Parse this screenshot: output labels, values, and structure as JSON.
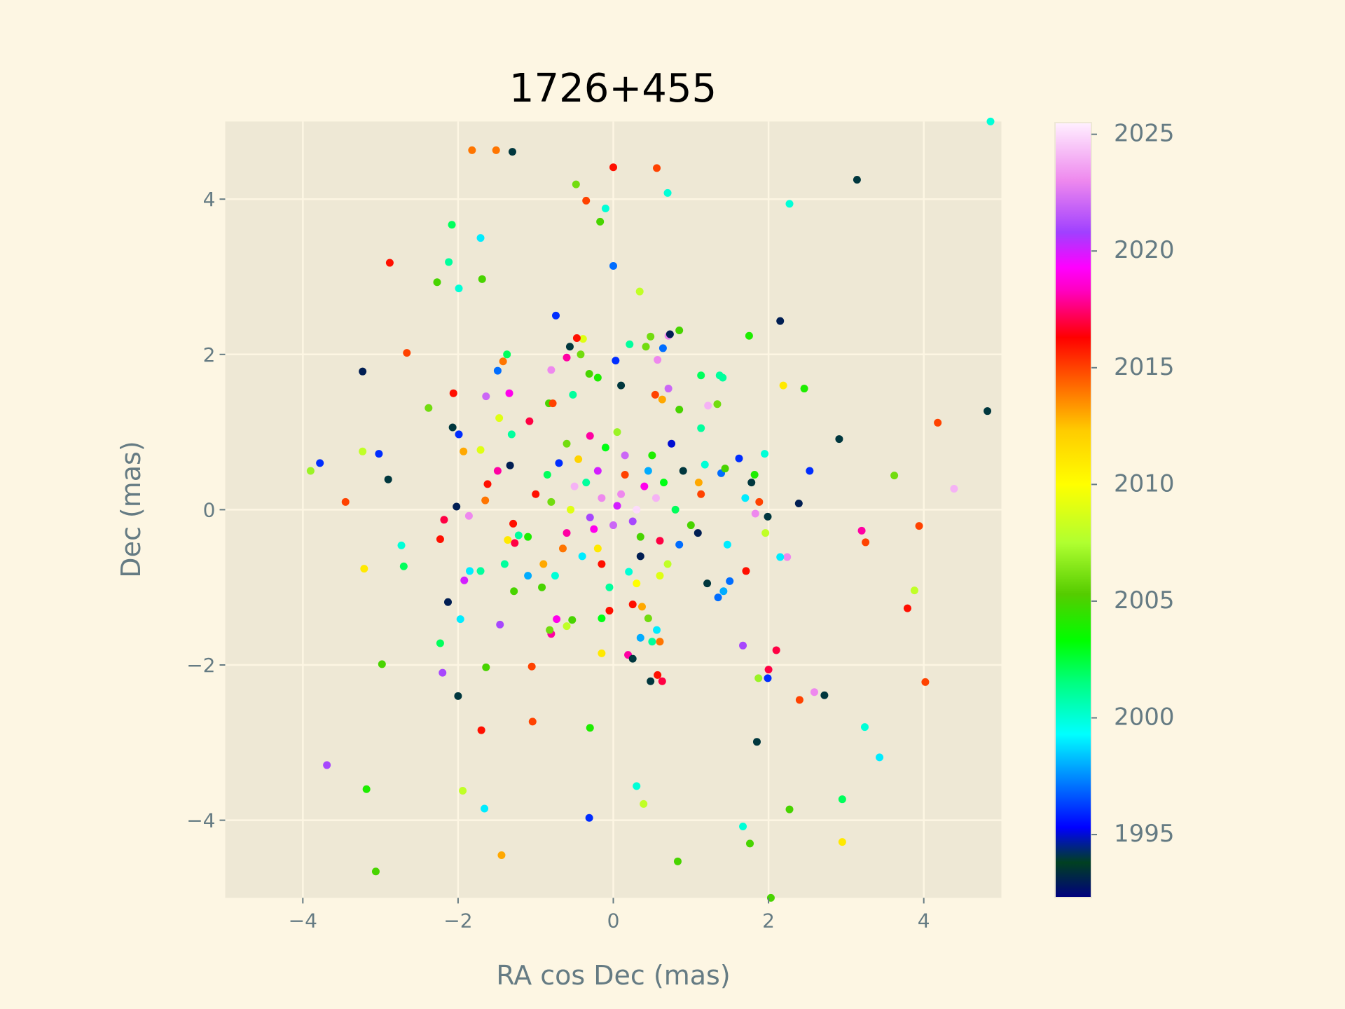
{
  "chart_data": {
    "type": "scatter",
    "title": "1726+455",
    "xlabel": "RA cos Dec (mas)",
    "ylabel": "Dec (mas)",
    "xlim": [
      -5,
      5
    ],
    "ylim": [
      -5,
      5
    ],
    "grid": true,
    "xticks": [
      -4,
      -2,
      0,
      2,
      4
    ],
    "yticks": [
      -4,
      -2,
      0,
      2,
      4
    ],
    "xtick_labels": [
      "−4",
      "−2",
      "0",
      "2",
      "4"
    ],
    "ytick_labels": [
      "−4",
      "−2",
      "0",
      "2",
      "4"
    ],
    "colorbar": {
      "label_ticks": [
        1995,
        2000,
        2005,
        2010,
        2015,
        2020,
        2025
      ],
      "tick_labels": [
        "1995",
        "2000",
        "2005",
        "2010",
        "2015",
        "2020",
        "2025"
      ],
      "range": [
        1992.3,
        2025.5
      ],
      "colormap_stops": [
        [
          1992.3,
          "#000080"
        ],
        [
          1993.8,
          "#004020"
        ],
        [
          1995.3,
          "#0000ff"
        ],
        [
          1997.3,
          "#0080ff"
        ],
        [
          1999.3,
          "#00ffff"
        ],
        [
          2001.5,
          "#00ff80"
        ],
        [
          2003.3,
          "#00ff00"
        ],
        [
          2005.3,
          "#55cc00"
        ],
        [
          2007.5,
          "#b0ff30"
        ],
        [
          2010.0,
          "#ffff00"
        ],
        [
          2012.3,
          "#ffcc00"
        ],
        [
          2014.3,
          "#ff6600"
        ],
        [
          2016.3,
          "#ff0000"
        ],
        [
          2018.3,
          "#ff00c0"
        ],
        [
          2019.3,
          "#ff00ff"
        ],
        [
          2020.8,
          "#a040ff"
        ],
        [
          2023.0,
          "#ee88ee"
        ],
        [
          2025.5,
          "#fff0ff"
        ]
      ]
    },
    "points": [
      [
        -1.82,
        4.63,
        2014
      ],
      [
        -1.51,
        4.63,
        2014
      ],
      [
        -1.3,
        4.61,
        1994
      ],
      [
        0,
        4.41,
        2016
      ],
      [
        0.56,
        4.4,
        2015
      ],
      [
        -0.48,
        4.19,
        2006
      ],
      [
        -0.35,
        3.98,
        2015
      ],
      [
        0.7,
        4.08,
        2000
      ],
      [
        -0.1,
        3.88,
        2000
      ],
      [
        -0.17,
        3.71,
        2005
      ],
      [
        3.14,
        4.25,
        1994
      ],
      [
        2.27,
        3.94,
        2000
      ],
      [
        4.86,
        5.0,
        2000
      ],
      [
        -2.08,
        3.67,
        2002
      ],
      [
        -1.71,
        3.5,
        1999
      ],
      [
        -2.88,
        3.18,
        2016
      ],
      [
        -2.12,
        3.19,
        2001
      ],
      [
        -2.27,
        2.93,
        2005
      ],
      [
        -1.69,
        2.97,
        2005
      ],
      [
        -1.99,
        2.85,
        2000
      ],
      [
        0,
        3.14,
        1997
      ],
      [
        0.34,
        2.81,
        2008
      ],
      [
        -0.74,
        2.5,
        1996
      ],
      [
        2.15,
        2.43,
        1993
      ],
      [
        1.75,
        2.24,
        2004
      ],
      [
        0.85,
        2.31,
        2005
      ],
      [
        -2.66,
        2.02,
        2015
      ],
      [
        -3.23,
        1.78,
        1993
      ],
      [
        -2.06,
        1.5,
        2016
      ],
      [
        -2.38,
        1.31,
        2006
      ],
      [
        2.19,
        1.6,
        2011
      ],
      [
        2.46,
        1.56,
        2004
      ],
      [
        4.18,
        1.12,
        2015
      ],
      [
        4.82,
        1.27,
        1994
      ],
      [
        2.91,
        0.91,
        1994
      ],
      [
        -2.07,
        1.06,
        1994
      ],
      [
        -3.23,
        0.75,
        2008
      ],
      [
        -3.02,
        0.72,
        1996
      ],
      [
        -3.78,
        0.6,
        1996
      ],
      [
        -3.9,
        0.5,
        2007
      ],
      [
        -2.9,
        0.39,
        1994
      ],
      [
        2.53,
        0.5,
        1996
      ],
      [
        3.62,
        0.44,
        2006
      ],
      [
        4.39,
        0.27,
        2024
      ],
      [
        -3.45,
        0.1,
        2015
      ],
      [
        -2.02,
        0.04,
        1993
      ],
      [
        -1.86,
        -0.08,
        2023
      ],
      [
        -2.18,
        -0.13,
        2017
      ],
      [
        2.39,
        0.08,
        1993
      ],
      [
        1.99,
        -0.09,
        1994
      ],
      [
        3.94,
        -0.21,
        2015
      ],
      [
        3.2,
        -0.27,
        2018
      ],
      [
        3.25,
        -0.42,
        2015
      ],
      [
        -2.73,
        -0.46,
        2000
      ],
      [
        -2.23,
        -0.38,
        2016
      ],
      [
        -2.7,
        -0.73,
        2002
      ],
      [
        -3.21,
        -0.76,
        2011
      ],
      [
        2.24,
        -0.61,
        2023
      ],
      [
        2.15,
        -0.61,
        1999
      ],
      [
        3.88,
        -1.04,
        2008
      ],
      [
        3.79,
        -1.27,
        2016
      ],
      [
        -2.13,
        -1.19,
        1993
      ],
      [
        -1.97,
        -1.41,
        1999
      ],
      [
        -2.23,
        -1.72,
        2002
      ],
      [
        -1.46,
        -1.48,
        2021
      ],
      [
        -2.98,
        -1.99,
        2005
      ],
      [
        -2.2,
        -2.1,
        2021
      ],
      [
        -2.0,
        -2.4,
        1994
      ],
      [
        -1.64,
        -2.03,
        2005
      ],
      [
        -1.05,
        -2.02,
        2015
      ],
      [
        -1.7,
        -2.84,
        2016
      ],
      [
        -1.04,
        -2.73,
        2015
      ],
      [
        -0.3,
        -2.81,
        2004
      ],
      [
        1.67,
        -1.75,
        2021
      ],
      [
        2.1,
        -1.81,
        2017
      ],
      [
        2.0,
        -2.06,
        2017
      ],
      [
        1.99,
        -2.17,
        1996
      ],
      [
        1.87,
        -2.17,
        2007
      ],
      [
        2.59,
        -2.35,
        2023
      ],
      [
        2.4,
        -2.45,
        2015
      ],
      [
        2.72,
        -2.39,
        1994
      ],
      [
        4.02,
        -2.22,
        2015
      ],
      [
        3.24,
        -2.8,
        2000
      ],
      [
        1.85,
        -2.99,
        1994
      ],
      [
        3.43,
        -3.19,
        1999
      ],
      [
        -3.69,
        -3.29,
        2021
      ],
      [
        -3.18,
        -3.6,
        2004
      ],
      [
        -1.94,
        -3.62,
        2008
      ],
      [
        -1.66,
        -3.85,
        1999
      ],
      [
        0.3,
        -3.56,
        2000
      ],
      [
        0.39,
        -3.79,
        2008
      ],
      [
        -0.31,
        -3.97,
        1996
      ],
      [
        2.27,
        -3.86,
        2005
      ],
      [
        2.95,
        -3.73,
        2002
      ],
      [
        1.67,
        -4.08,
        2000
      ],
      [
        1.76,
        -4.3,
        2005
      ],
      [
        2.95,
        -4.28,
        2011
      ],
      [
        0.83,
        -4.53,
        2005
      ],
      [
        -1.44,
        -4.45,
        2013
      ],
      [
        -3.06,
        -4.66,
        2005
      ],
      [
        2.03,
        -5.0,
        2005
      ],
      [
        -1.42,
        1.91,
        2014
      ],
      [
        -1.49,
        1.79,
        1997
      ],
      [
        -1.37,
        2.0,
        2002
      ],
      [
        -0.56,
        2.1,
        1994
      ],
      [
        -0.39,
        2.2,
        2009
      ],
      [
        -0.47,
        2.21,
        2016
      ],
      [
        -0.6,
        1.96,
        2018
      ],
      [
        -0.42,
        2.0,
        2006
      ],
      [
        0.48,
        2.23,
        2006
      ],
      [
        0.42,
        2.1,
        2006
      ],
      [
        0.21,
        2.13,
        2001
      ],
      [
        0.71,
        2.24,
        2023
      ],
      [
        0.73,
        2.26,
        1993
      ],
      [
        0.64,
        2.08,
        1997
      ],
      [
        0.57,
        1.93,
        2023
      ],
      [
        0.03,
        1.92,
        1996
      ],
      [
        -0.8,
        1.8,
        2023
      ],
      [
        -0.31,
        1.75,
        2005
      ],
      [
        -0.2,
        1.7,
        2004
      ],
      [
        0.1,
        1.6,
        1994
      ],
      [
        1.13,
        1.73,
        2002
      ],
      [
        1.37,
        1.73,
        2001
      ],
      [
        1.41,
        1.7,
        2001
      ],
      [
        0.71,
        1.56,
        2022
      ],
      [
        -1.64,
        1.46,
        2022
      ],
      [
        -1.47,
        1.18,
        2009
      ],
      [
        -1.34,
        1.5,
        2019
      ],
      [
        -1.08,
        1.14,
        2017
      ],
      [
        -0.83,
        1.37,
        2005
      ],
      [
        -0.78,
        1.37,
        2015
      ],
      [
        1.22,
        1.34,
        2024
      ],
      [
        1.34,
        1.36,
        2006
      ],
      [
        1.13,
        1.05,
        2001
      ],
      [
        0.85,
        1.29,
        2005
      ],
      [
        0.63,
        1.42,
        2013
      ],
      [
        -0.52,
        1.48,
        2001
      ],
      [
        0.54,
        1.48,
        2015
      ],
      [
        -1.93,
        0.75,
        2013
      ],
      [
        -1.71,
        0.77,
        2009
      ],
      [
        -1.99,
        0.97,
        1996
      ],
      [
        -1.31,
        0.97,
        2001
      ],
      [
        -1.49,
        0.5,
        2018
      ],
      [
        -1.33,
        0.57,
        1993
      ],
      [
        -1.62,
        0.33,
        2016
      ],
      [
        -1.65,
        0.12,
        2014
      ],
      [
        -1.29,
        -0.18,
        2016
      ],
      [
        -1.36,
        -0.39,
        2011
      ],
      [
        -1.27,
        -0.43,
        2017
      ],
      [
        -1.22,
        -0.33,
        2001
      ],
      [
        -1.4,
        -0.7,
        2001
      ],
      [
        -1.71,
        -0.79,
        2001
      ],
      [
        -1.85,
        -0.79,
        1999
      ],
      [
        -1.92,
        -0.91,
        2020
      ],
      [
        -1.1,
        -0.85,
        1998
      ],
      [
        -1.28,
        -1.05,
        2005
      ],
      [
        -0.92,
        -1.0,
        2005
      ],
      [
        -0.73,
        -1.41,
        2019
      ],
      [
        -0.6,
        -1.5,
        2008
      ],
      [
        -0.53,
        -1.42,
        2005
      ],
      [
        -0.8,
        -1.6,
        2018
      ],
      [
        -0.82,
        -1.55,
        2006
      ],
      [
        -0.15,
        -1.4,
        2003
      ],
      [
        -0.05,
        -1.3,
        2016
      ],
      [
        0.25,
        -1.22,
        2016
      ],
      [
        0.37,
        -1.25,
        2013
      ],
      [
        0.45,
        -1.4,
        2006
      ],
      [
        0.35,
        -1.65,
        1998
      ],
      [
        0.56,
        -1.55,
        1999
      ],
      [
        0.6,
        -1.7,
        2014
      ],
      [
        0.19,
        -1.87,
        2018
      ],
      [
        0.25,
        -1.92,
        1994
      ],
      [
        0.5,
        -1.7,
        2001
      ],
      [
        -0.15,
        -1.85,
        2011
      ],
      [
        0.48,
        -2.21,
        1994
      ],
      [
        0.57,
        -2.13,
        2016
      ],
      [
        0.63,
        -2.21,
        2017
      ],
      [
        1.21,
        -0.95,
        1994
      ],
      [
        1.42,
        -1.05,
        1998
      ],
      [
        1.35,
        -1.13,
        1997
      ],
      [
        1.5,
        -0.92,
        1997
      ],
      [
        1.47,
        -0.45,
        1999
      ],
      [
        1.39,
        0.47,
        1997
      ],
      [
        1.44,
        0.53,
        2005
      ],
      [
        1.62,
        0.66,
        1996
      ],
      [
        1.82,
        0.45,
        2004
      ],
      [
        1.78,
        0.35,
        1994
      ],
      [
        1.95,
        0.72,
        2000
      ],
      [
        1.7,
        0.15,
        1999
      ],
      [
        1.88,
        0.1,
        2015
      ],
      [
        1.83,
        -0.05,
        2023
      ],
      [
        1.96,
        -0.3,
        2008
      ],
      [
        1.71,
        -0.79,
        2016
      ],
      [
        1.18,
        0.58,
        2000
      ],
      [
        1.13,
        0.2,
        2015
      ],
      [
        1.09,
        -0.3,
        1993
      ],
      [
        -0.5,
        0.3,
        2024
      ],
      [
        -0.2,
        0.5,
        2020
      ],
      [
        0.1,
        0.2,
        2023
      ],
      [
        0.3,
        0.0,
        2025
      ],
      [
        0.0,
        -0.2,
        2022
      ],
      [
        -0.3,
        -0.1,
        2021
      ],
      [
        0.4,
        0.3,
        2019
      ],
      [
        -0.6,
        -0.3,
        2018
      ],
      [
        0.6,
        -0.4,
        2017
      ],
      [
        -0.1,
        0.8,
        2003
      ],
      [
        0.2,
        -0.8,
        2000
      ],
      [
        -0.8,
        0.1,
        2006
      ],
      [
        0.8,
        0.0,
        2002
      ],
      [
        -0.4,
        -0.6,
        1999
      ],
      [
        0.5,
        0.7,
        2004
      ],
      [
        -0.7,
        0.6,
        1996
      ],
      [
        0.7,
        -0.7,
        2008
      ],
      [
        -0.9,
        -0.7,
        2013
      ],
      [
        0.9,
        0.5,
        1994
      ],
      [
        -0.2,
        -0.5,
        2011
      ],
      [
        0.15,
        0.45,
        2015
      ],
      [
        -0.35,
        0.35,
        2001
      ],
      [
        0.35,
        -0.35,
        2005
      ],
      [
        -0.55,
        0.0,
        2009
      ],
      [
        0.55,
        0.15,
        2024
      ],
      [
        0.05,
        0.05,
        2020
      ],
      [
        -0.15,
        0.15,
        2023
      ],
      [
        0.25,
        -0.15,
        2021
      ],
      [
        -0.25,
        -0.25,
        2019
      ],
      [
        0.45,
        0.5,
        1998
      ],
      [
        -0.65,
        -0.5,
        2014
      ],
      [
        0.65,
        0.35,
        2003
      ],
      [
        -0.45,
        0.65,
        2012
      ],
      [
        0.35,
        -0.6,
        1993
      ],
      [
        -1.0,
        0.2,
        2016
      ],
      [
        1.0,
        -0.2,
        2005
      ],
      [
        -0.05,
        -1.0,
        2001
      ],
      [
        0.05,
        1.0,
        2007
      ],
      [
        -0.85,
        0.45,
        2002
      ],
      [
        0.85,
        -0.45,
        1997
      ],
      [
        -0.3,
        0.95,
        2018
      ],
      [
        0.3,
        -0.95,
        2010
      ],
      [
        -1.1,
        -0.35,
        2004
      ],
      [
        1.1,
        0.35,
        2013
      ],
      [
        -0.75,
        -0.85,
        2000
      ],
      [
        0.75,
        0.85,
        1995
      ],
      [
        -0.15,
        -0.7,
        2016
      ],
      [
        0.15,
        0.7,
        2022
      ],
      [
        -0.6,
        0.85,
        2006
      ],
      [
        0.6,
        -0.85,
        2009
      ]
    ]
  }
}
